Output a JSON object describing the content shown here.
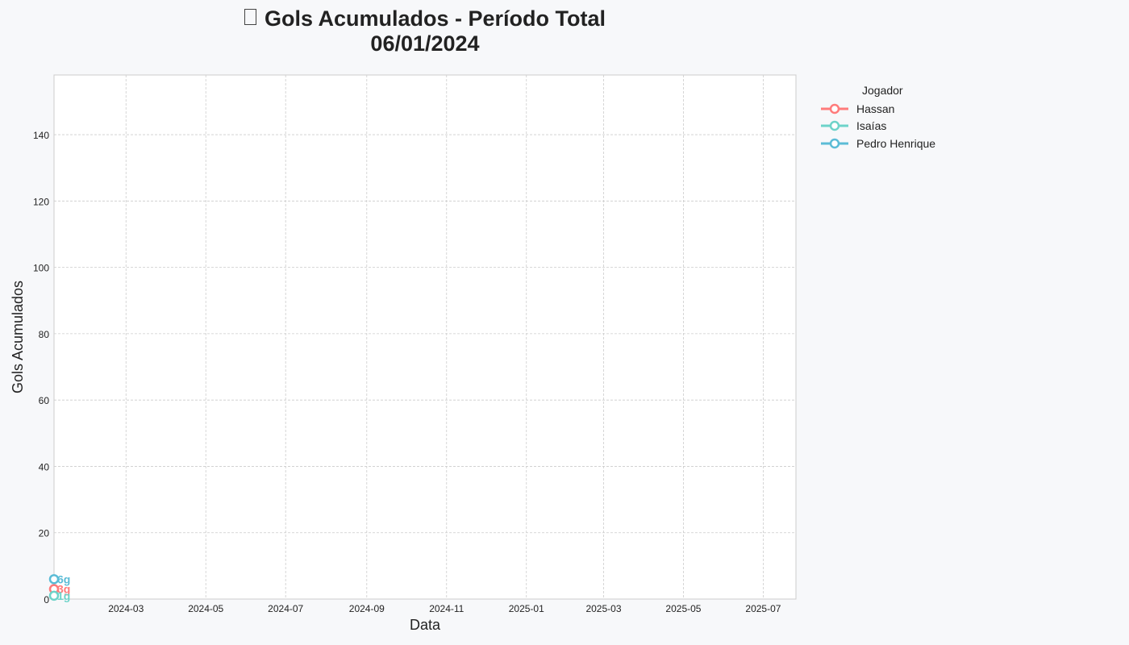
{
  "title": {
    "line1": "Gols Acumulados - Período Total",
    "line2": "06/01/2024"
  },
  "chart_data": {
    "type": "line",
    "xlabel": "Data",
    "ylabel": "Gols Acumulados",
    "xlim": [
      "2024-01-06",
      "2025-07-26"
    ],
    "ylim": [
      0,
      158
    ],
    "x_ticks": [
      "2024-03",
      "2024-05",
      "2024-07",
      "2024-09",
      "2024-11",
      "2025-01",
      "2025-03",
      "2025-05",
      "2025-07"
    ],
    "y_ticks": [
      0,
      20,
      40,
      60,
      80,
      100,
      120,
      140
    ],
    "grid": true,
    "legend_title": "Jogador",
    "legend_position": "outside-right",
    "series": [
      {
        "name": "Hassan",
        "color": "#ff7b7b",
        "x": [
          "2024-01-06"
        ],
        "y": [
          3
        ],
        "end_label": "3g"
      },
      {
        "name": "Isaías",
        "color": "#6dd3c9",
        "x": [
          "2024-01-06"
        ],
        "y": [
          1
        ],
        "end_label": "1g"
      },
      {
        "name": "Pedro Henrique",
        "color": "#5bbcd6",
        "x": [
          "2024-01-06"
        ],
        "y": [
          6
        ],
        "end_label": "6g"
      }
    ]
  }
}
